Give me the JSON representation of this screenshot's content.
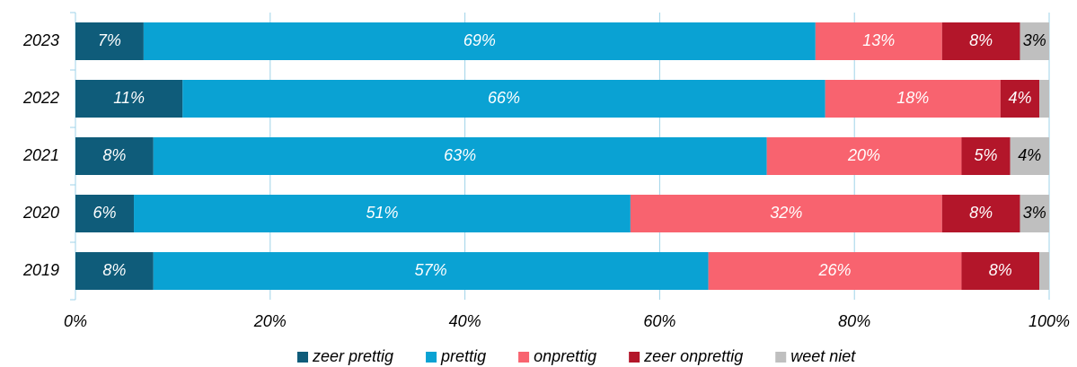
{
  "chart_data": {
    "type": "stacked-bar-horizontal",
    "categories": [
      "2023",
      "2022",
      "2021",
      "2020",
      "2019"
    ],
    "series": [
      {
        "name": "zeer prettig",
        "color": "#0f5c7a",
        "values": [
          7,
          11,
          8,
          6,
          8
        ],
        "value_labels": [
          "7%",
          "11%",
          "8%",
          "6%",
          "8%"
        ]
      },
      {
        "name": "prettig",
        "color": "#0aa2d3",
        "values": [
          69,
          66,
          63,
          51,
          57
        ],
        "value_labels": [
          "69%",
          "66%",
          "63%",
          "51%",
          "57%"
        ]
      },
      {
        "name": "onprettig",
        "color": "#f8636f",
        "values": [
          13,
          18,
          20,
          32,
          26
        ],
        "value_labels": [
          "13%",
          "18%",
          "20%",
          "32%",
          "26%"
        ]
      },
      {
        "name": "zeer onprettig",
        "color": "#b3162a",
        "values": [
          8,
          4,
          5,
          8,
          8
        ],
        "value_labels": [
          "8%",
          "4%",
          "5%",
          "8%",
          "8%"
        ]
      },
      {
        "name": "weet niet",
        "color": "#bfbfbf",
        "values": [
          3,
          1,
          4,
          3,
          1
        ],
        "value_labels": [
          "3%",
          null,
          "4%",
          "3%",
          null
        ]
      }
    ],
    "xlim": [
      0,
      100
    ],
    "xticks": [
      {
        "value": 0,
        "label": "0%"
      },
      {
        "value": 20,
        "label": "20%"
      },
      {
        "value": 40,
        "label": "40%"
      },
      {
        "value": 60,
        "label": "60%"
      },
      {
        "value": 80,
        "label": "80%"
      },
      {
        "value": 100,
        "label": "100%"
      }
    ],
    "grid": true,
    "legend": "bottom"
  }
}
